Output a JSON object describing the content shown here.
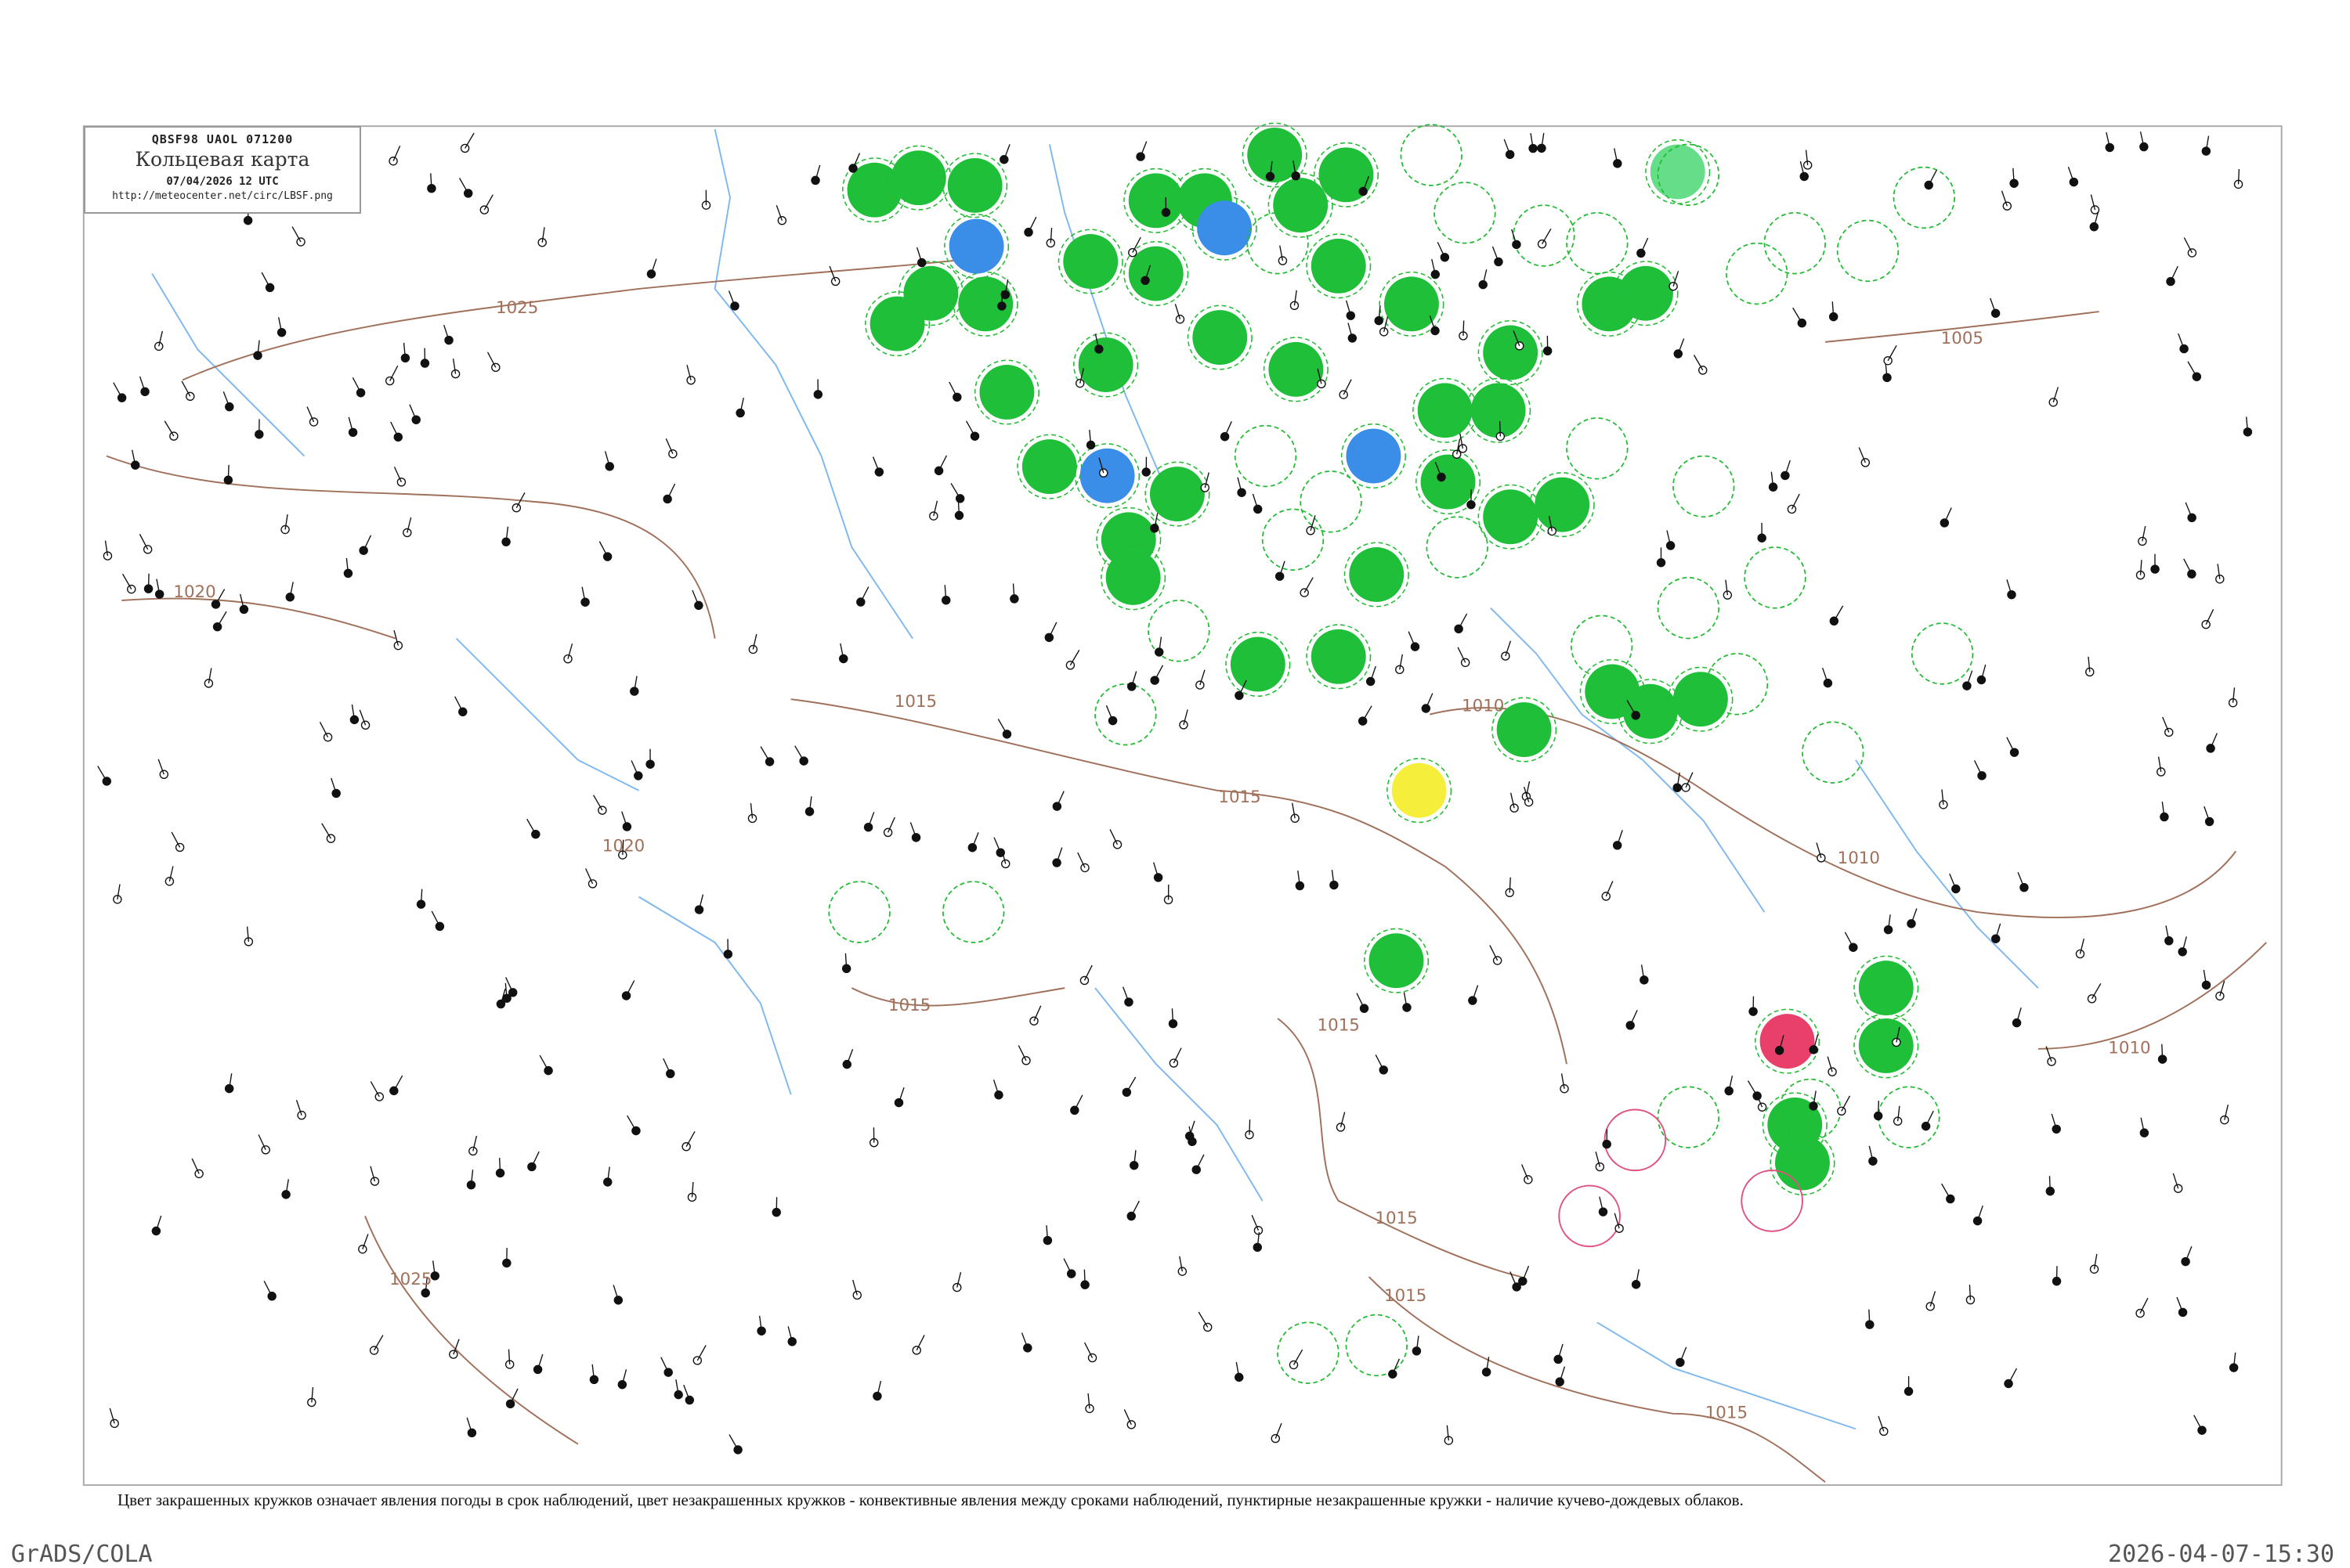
{
  "header": {
    "code_line": "QBSF98   UAOL   071200",
    "title": "Кольцевая карта",
    "datetime": "07/04/2026 12 UTC",
    "url": "http://meteocenter.net/circ/LBSF.png"
  },
  "caption": "Цвет закрашенных кружков означает явления погоды в срок наблюдений, цвет незакрашенных кружков - конвективные явления между сроками наблюдений, пунктирные незакрашенные кружки - наличие кучево-дождевых облаков.",
  "footer": {
    "left": "GrADS/COLA",
    "right": "2026-04-07-15:30"
  },
  "isobar_labels": [
    "1025",
    "1020",
    "1020",
    "1015",
    "1015",
    "1015",
    "1015",
    "1015",
    "1015",
    "1015",
    "1010",
    "1010",
    "1010",
    "1005",
    "1025"
  ],
  "colors": {
    "isobar": "#a0705a",
    "river": "#7fb8ee",
    "rain_fill": "#1fbf3a",
    "snow_fill": "#3a8ee8",
    "fog_fill": "#f5ee3a",
    "thunder_fill": "#e8406a",
    "shower_fill": "#66dd88",
    "cb_dashed": "#22bb33",
    "convective_outline": "#e05080",
    "frame": "#aaaaaa"
  }
}
